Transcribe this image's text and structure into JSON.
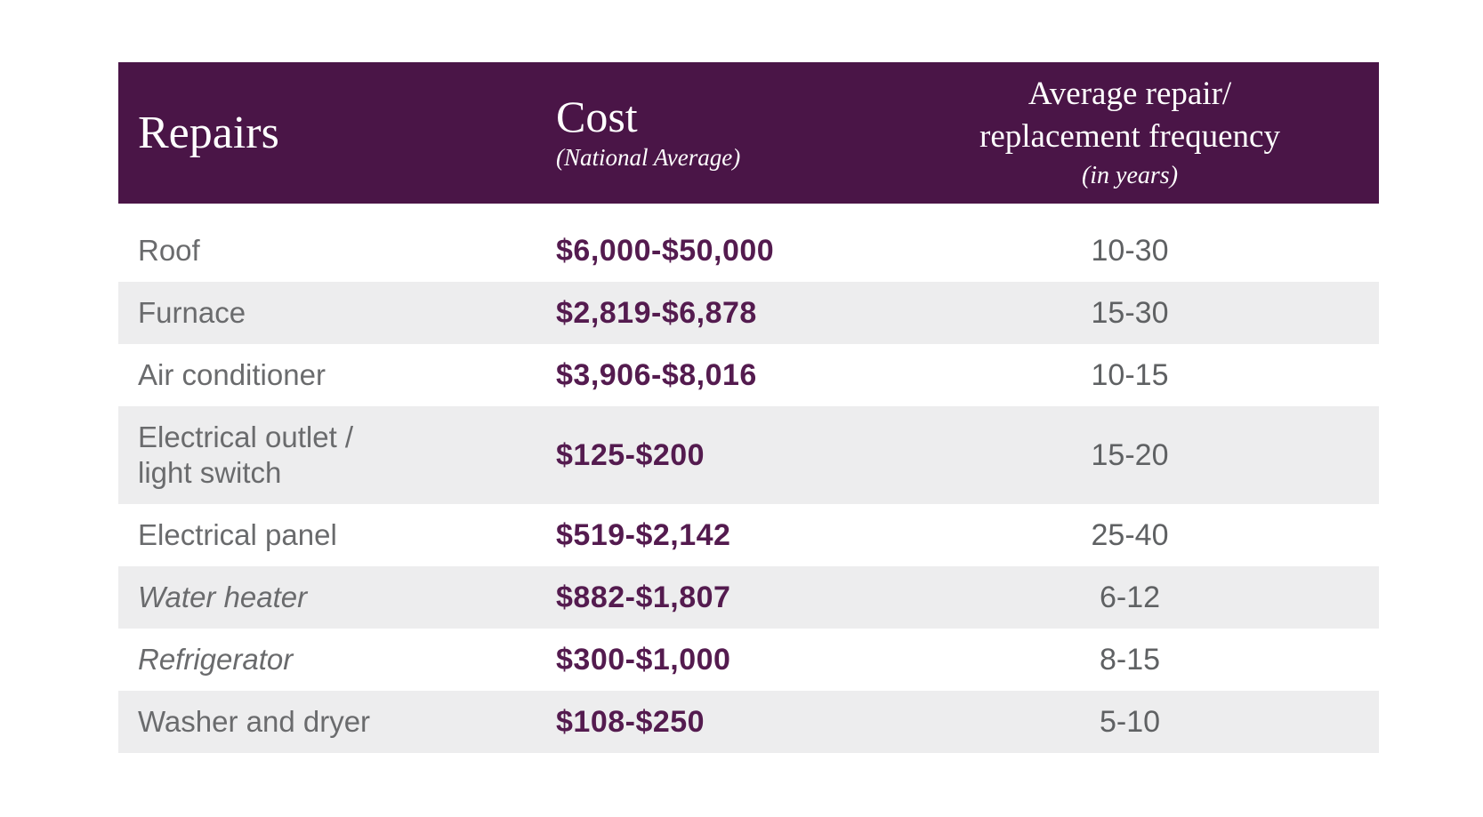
{
  "colors": {
    "header_bg": "#4a1547",
    "header_text": "#ffffff",
    "row_bg": "#ffffff",
    "row_alt_bg": "#ededee",
    "label_text": "#6a6b6d",
    "cost_text": "#541b4f",
    "freq_text": "#5f6163"
  },
  "header": {
    "col1": {
      "title": "Repairs"
    },
    "col2": {
      "title": "Cost",
      "subtitle": "(National Average)"
    },
    "col3": {
      "title_line1": "Average repair/",
      "title_line2": "replacement frequency",
      "subtitle": "(in years)"
    }
  },
  "rows": [
    {
      "repair": "Roof",
      "cost": "$6,000-$50,000",
      "frequency": "10-30",
      "italic": false,
      "shaded": false
    },
    {
      "repair": "Furnace",
      "cost": "$2,819-$6,878",
      "frequency": "15-30",
      "italic": false,
      "shaded": true
    },
    {
      "repair": "Air conditioner",
      "cost": "$3,906-$8,016",
      "frequency": "10-15",
      "italic": false,
      "shaded": false
    },
    {
      "repair": "Electrical outlet /\nlight switch",
      "cost": "$125-$200",
      "frequency": "15-20",
      "italic": false,
      "shaded": true
    },
    {
      "repair": "Electrical panel",
      "cost": "$519-$2,142",
      "frequency": "25-40",
      "italic": false,
      "shaded": false
    },
    {
      "repair": "Water heater",
      "cost": "$882-$1,807",
      "frequency": "6-12",
      "italic": true,
      "shaded": true
    },
    {
      "repair": "Refrigerator",
      "cost": "$300-$1,000",
      "frequency": "8-15",
      "italic": true,
      "shaded": false
    },
    {
      "repair": "Washer and dryer",
      "cost": "$108-$250",
      "frequency": "5-10",
      "italic": false,
      "shaded": true
    }
  ],
  "chart_data": {
    "type": "table",
    "columns": [
      "Repairs",
      "Cost (National Average)",
      "Average repair/replacement frequency (in years)"
    ],
    "rows": [
      [
        "Roof",
        "$6,000-$50,000",
        "10-30"
      ],
      [
        "Furnace",
        "$2,819-$6,878",
        "15-30"
      ],
      [
        "Air conditioner",
        "$3,906-$8,016",
        "10-15"
      ],
      [
        "Electrical outlet / light switch",
        "$125-$200",
        "15-20"
      ],
      [
        "Electrical panel",
        "$519-$2,142",
        "25-40"
      ],
      [
        "Water heater",
        "$882-$1,807",
        "6-12"
      ],
      [
        "Refrigerator",
        "$300-$1,000",
        "8-15"
      ],
      [
        "Washer and dryer",
        "$108-$250",
        "5-10"
      ]
    ],
    "layout_hints": {
      "header_style": "dark-purple serif",
      "zebra_striping": true,
      "column_align": [
        "left",
        "left",
        "center"
      ]
    }
  }
}
